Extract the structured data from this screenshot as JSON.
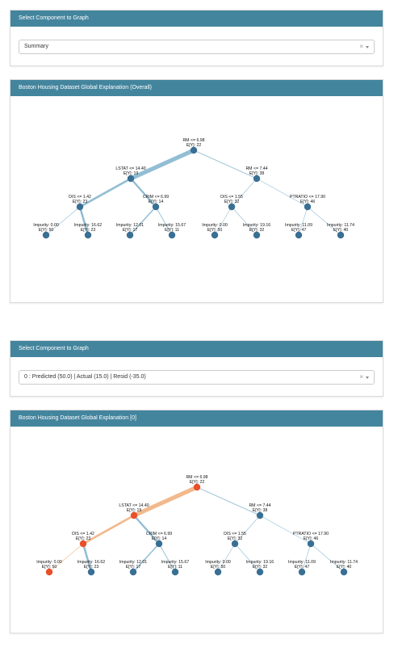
{
  "cards": [
    {
      "header": "Select Component to Graph",
      "select_value": "Summary"
    },
    {
      "header": "Boston Housing Dataset Global Explanation (Overall)"
    },
    {
      "header": "Select Component to Graph",
      "select_value": "0 : Predicted (50.0) | Actual (15.0) | Resid (-35.0)"
    },
    {
      "header": "Boston Housing Dataset Global Explanation [0]"
    }
  ],
  "select_clear_symbol": "×",
  "tree": {
    "nodes": [
      {
        "id": "root",
        "line1": "RM <= 6.98",
        "line2": "E[Y]: 22"
      },
      {
        "id": "l",
        "line1": "LSTAT <= 14.40",
        "line2": "E[Y]: 19"
      },
      {
        "id": "r",
        "line1": "RM <= 7.44",
        "line2": "E[Y]: 38"
      },
      {
        "id": "ll",
        "line1": "DIS <= 1.42",
        "line2": "E[Y]: 23"
      },
      {
        "id": "lr",
        "line1": "CRIM <= 6.99",
        "line2": "E[Y]: 14"
      },
      {
        "id": "rl",
        "line1": "DIS <= 1.55",
        "line2": "E[Y]: 32"
      },
      {
        "id": "rr",
        "line1": "PTRATIO <= 17.90",
        "line2": "E[Y]: 46"
      },
      {
        "id": "lll",
        "line1": "Impurity: 0.00",
        "line2": "E[Y]: 50"
      },
      {
        "id": "llr",
        "line1": "Impurity: 16.62",
        "line2": "E[Y]: 23"
      },
      {
        "id": "lrl",
        "line1": "Impurity: 12.01",
        "line2": "E[Y]: 17"
      },
      {
        "id": "lrr",
        "line1": "Impurity: 15.67",
        "line2": "E[Y]: 11"
      },
      {
        "id": "rll",
        "line1": "Impurity: 0.00",
        "line2": "E[Y]: 50"
      },
      {
        "id": "rlr",
        "line1": "Impurity: 19.16",
        "line2": "E[Y]: 32"
      },
      {
        "id": "rrl",
        "line1": "Impurity: 11.09",
        "line2": "E[Y]: 47"
      },
      {
        "id": "rrr",
        "line1": "Impurity: 11.74",
        "line2": "E[Y]: 40"
      }
    ],
    "edges": [
      {
        "from": "root",
        "to": "l",
        "weight": 0.85
      },
      {
        "from": "root",
        "to": "r",
        "weight": 0.15
      },
      {
        "from": "l",
        "to": "ll",
        "weight": 0.45
      },
      {
        "from": "l",
        "to": "lr",
        "weight": 0.4
      },
      {
        "from": "r",
        "to": "rl",
        "weight": 0.1
      },
      {
        "from": "r",
        "to": "rr",
        "weight": 0.05
      },
      {
        "from": "ll",
        "to": "lll",
        "weight": 0.02
      },
      {
        "from": "ll",
        "to": "llr",
        "weight": 0.43
      },
      {
        "from": "lr",
        "to": "lrl",
        "weight": 0.25
      },
      {
        "from": "lr",
        "to": "lrr",
        "weight": 0.15
      },
      {
        "from": "rl",
        "to": "rll",
        "weight": 0.01
      },
      {
        "from": "rl",
        "to": "rlr",
        "weight": 0.09
      },
      {
        "from": "rr",
        "to": "rrl",
        "weight": 0.03
      },
      {
        "from": "rr",
        "to": "rrr",
        "weight": 0.02
      }
    ],
    "highlight_path": [
      "root",
      "l",
      "ll",
      "lll"
    ]
  },
  "colors": {
    "header_bg": "#44859e",
    "node": "#3a6f94",
    "edge": "#7fb3cc",
    "highlight_node": "#e8502a",
    "highlight_edge": "#f2b98c"
  }
}
